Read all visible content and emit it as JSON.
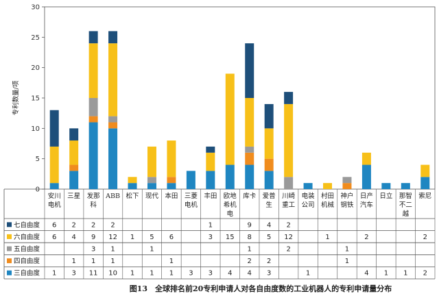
{
  "chart_data": {
    "type": "bar",
    "stacked": true,
    "ylabel": "专利数量/项",
    "ylim": [
      0,
      30
    ],
    "yticks": [
      0,
      5,
      10,
      15,
      20,
      25,
      30
    ],
    "grid": false,
    "categories": [
      [
        "安川",
        "电机"
      ],
      [
        "三星"
      ],
      [
        "发那",
        "科"
      ],
      [
        "ABB"
      ],
      [
        "松下"
      ],
      [
        "现代"
      ],
      [
        "本田"
      ],
      [
        "三菱",
        "电机"
      ],
      [
        "丰田"
      ],
      [
        "欧地",
        "希机",
        "电"
      ],
      [
        "库卡"
      ],
      [
        "爱普",
        "生"
      ],
      [
        "川崎",
        "重工"
      ],
      [
        "电装",
        "公司"
      ],
      [
        "村田",
        "机械"
      ],
      [
        "神户",
        "钢铁"
      ],
      [
        "日产",
        "汽车"
      ],
      [
        "日立"
      ],
      [
        "那智",
        "不二",
        "越"
      ],
      [
        "索尼"
      ]
    ],
    "series": [
      {
        "name": "三自由度",
        "color": "#1f86c1",
        "values": [
          1,
          3,
          11,
          10,
          1,
          1,
          1,
          3,
          3,
          4,
          4,
          3,
          null,
          1,
          null,
          null,
          4,
          1,
          1,
          2
        ]
      },
      {
        "name": "四自由度",
        "color": "#f08c1e",
        "values": [
          null,
          1,
          1,
          1,
          null,
          null,
          1,
          null,
          null,
          null,
          2,
          2,
          null,
          null,
          null,
          1,
          null,
          null,
          null,
          null
        ]
      },
      {
        "name": "五自由度",
        "color": "#9a9a9a",
        "values": [
          null,
          null,
          3,
          1,
          null,
          1,
          null,
          null,
          null,
          null,
          1,
          null,
          2,
          null,
          null,
          1,
          null,
          null,
          null,
          null
        ]
      },
      {
        "name": "六自由度",
        "color": "#f7c019",
        "values": [
          6,
          4,
          9,
          12,
          1,
          5,
          6,
          null,
          3,
          15,
          8,
          5,
          12,
          null,
          1,
          null,
          2,
          null,
          null,
          2
        ]
      },
      {
        "name": "七自由度",
        "color": "#1e4f7a",
        "values": [
          6,
          2,
          2,
          2,
          null,
          null,
          null,
          null,
          1,
          null,
          9,
          4,
          2,
          null,
          null,
          null,
          null,
          null,
          null,
          null
        ]
      }
    ],
    "legend_order": [
      "七自由度",
      "六自由度",
      "五自由度",
      "四自由度",
      "三自由度"
    ],
    "legend_placement": "table-left"
  },
  "caption": "图13　全球排名前20专利申请人对各自由度数的工业机器人的专利申请量分布"
}
